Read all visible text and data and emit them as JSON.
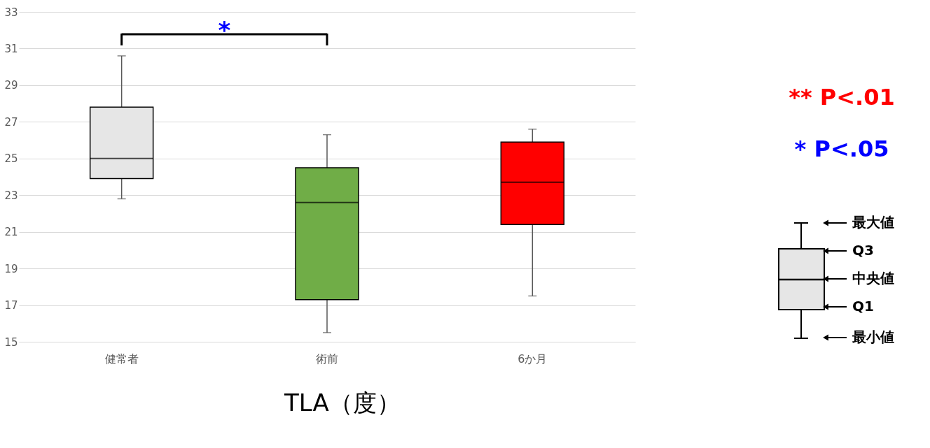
{
  "chart_data": {
    "type": "box",
    "title": "TLA（度）",
    "categories": [
      "健常者",
      "術前",
      "6か月"
    ],
    "colors": [
      "#e6e6e6",
      "#70ad47",
      "#ff0000"
    ],
    "boxes": [
      {
        "low": 22.8,
        "q1": 23.9,
        "median": 25.0,
        "q3": 27.8,
        "high": 30.6
      },
      {
        "low": 15.5,
        "q1": 17.3,
        "median": 22.6,
        "q3": 24.5,
        "high": 26.3
      },
      {
        "low": 17.5,
        "q1": 21.4,
        "median": 23.7,
        "q3": 25.9,
        "high": 26.6
      }
    ],
    "ylim": [
      15,
      33
    ],
    "yticks": [
      15,
      17,
      19,
      21,
      23,
      25,
      27,
      29,
      31,
      33
    ],
    "grid": "y",
    "annotations": [
      "*",
      "** P<.01",
      "* P<.05",
      "最大値",
      "Q3",
      "中央値",
      "Q1",
      "最小値"
    ]
  }
}
